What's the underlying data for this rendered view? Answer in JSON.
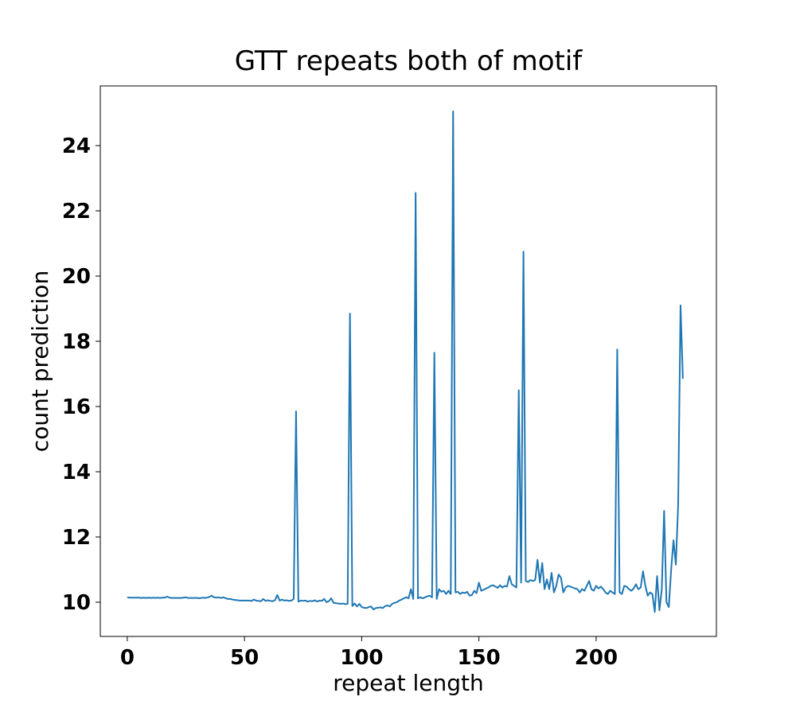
{
  "chart_data": {
    "type": "line",
    "title": "GTT repeats both of motif",
    "x_label": "repeat length",
    "y_label": "count prediction",
    "x": [
      0,
      1,
      2,
      3,
      4,
      5,
      6,
      7,
      8,
      9,
      10,
      11,
      12,
      13,
      14,
      15,
      16,
      17,
      18,
      19,
      20,
      21,
      22,
      23,
      24,
      25,
      26,
      27,
      28,
      29,
      30,
      31,
      32,
      33,
      34,
      35,
      36,
      37,
      38,
      39,
      40,
      41,
      42,
      43,
      44,
      45,
      46,
      47,
      48,
      49,
      50,
      51,
      52,
      53,
      54,
      55,
      56,
      57,
      58,
      59,
      60,
      61,
      62,
      63,
      64,
      65,
      66,
      67,
      68,
      69,
      70,
      71,
      72,
      73,
      74,
      75,
      76,
      77,
      78,
      79,
      80,
      81,
      82,
      83,
      84,
      85,
      86,
      87,
      88,
      89,
      90,
      91,
      92,
      93,
      94,
      95,
      96,
      97,
      98,
      99,
      100,
      101,
      102,
      103,
      104,
      105,
      106,
      107,
      108,
      109,
      110,
      111,
      112,
      113,
      114,
      115,
      116,
      117,
      118,
      119,
      120,
      121,
      122,
      123,
      124,
      125,
      126,
      127,
      128,
      129,
      130,
      131,
      132,
      133,
      134,
      135,
      136,
      137,
      138,
      139,
      140,
      141,
      142,
      143,
      144,
      145,
      146,
      147,
      148,
      149,
      150,
      151,
      152,
      153,
      154,
      155,
      156,
      157,
      158,
      159,
      160,
      161,
      162,
      163,
      164,
      165,
      166,
      167,
      168,
      169,
      170,
      171,
      172,
      173,
      174,
      175,
      176,
      177,
      178,
      179,
      180,
      181,
      182,
      183,
      184,
      185,
      186,
      187,
      188,
      189,
      190,
      191,
      192,
      193,
      194,
      195,
      196,
      197,
      198,
      199,
      200,
      201,
      202,
      203,
      204,
      205,
      206,
      207,
      208,
      209,
      210,
      211,
      212,
      213,
      214,
      215,
      216,
      217,
      218,
      219,
      220,
      221,
      222,
      223,
      224,
      225,
      226,
      227,
      228,
      229,
      230,
      231,
      232,
      233,
      234,
      235,
      236,
      237
    ],
    "series": [
      {
        "color": "#1f77b4",
        "values": [
          10.15,
          10.14,
          10.14,
          10.14,
          10.14,
          10.14,
          10.13,
          10.14,
          10.13,
          10.14,
          10.13,
          10.14,
          10.13,
          10.14,
          10.13,
          10.14,
          10.14,
          10.17,
          10.14,
          10.13,
          10.13,
          10.13,
          10.13,
          10.13,
          10.14,
          10.15,
          10.13,
          10.13,
          10.13,
          10.13,
          10.13,
          10.12,
          10.14,
          10.13,
          10.14,
          10.16,
          10.2,
          10.15,
          10.14,
          10.15,
          10.13,
          10.15,
          10.12,
          10.1,
          10.1,
          10.08,
          10.07,
          10.06,
          10.05,
          10.05,
          10.05,
          10.05,
          10.05,
          10.04,
          10.08,
          10.05,
          10.04,
          10.03,
          10.1,
          10.04,
          10.06,
          10.04,
          10.03,
          10.06,
          10.22,
          10.05,
          10.08,
          10.05,
          10.06,
          10.04,
          10.05,
          10.1,
          15.85,
          10.02,
          10.05,
          10.04,
          10.05,
          10.02,
          10.04,
          10.03,
          10.06,
          10.02,
          10.05,
          10.04,
          10.1,
          10.0,
          10.03,
          10.12,
          9.98,
          9.97,
          9.96,
          9.95,
          9.96,
          9.94,
          9.95,
          18.85,
          9.88,
          9.96,
          9.87,
          9.95,
          9.85,
          9.83,
          9.82,
          9.85,
          9.87,
          9.78,
          9.82,
          9.83,
          9.84,
          9.82,
          9.88,
          9.9,
          9.87,
          9.95,
          9.98,
          10.0,
          10.05,
          10.08,
          10.12,
          10.15,
          10.12,
          10.4,
          10.1,
          22.55,
          10.12,
          10.15,
          10.12,
          10.15,
          10.18,
          10.2,
          10.15,
          17.65,
          10.1,
          10.4,
          10.32,
          10.35,
          10.25,
          10.35,
          10.25,
          25.05,
          10.3,
          10.32,
          10.25,
          10.3,
          10.28,
          10.32,
          10.2,
          10.22,
          10.35,
          10.28,
          10.6,
          10.35,
          10.38,
          10.42,
          10.45,
          10.5,
          10.52,
          10.48,
          10.44,
          10.52,
          10.45,
          10.5,
          10.48,
          10.8,
          10.55,
          10.5,
          10.45,
          16.5,
          10.6,
          20.75,
          10.65,
          10.62,
          10.68,
          10.65,
          10.68,
          11.3,
          10.6,
          11.2,
          10.4,
          10.7,
          10.4,
          10.9,
          10.3,
          10.5,
          10.85,
          10.75,
          10.3,
          10.45,
          10.5,
          10.48,
          10.45,
          10.42,
          10.4,
          10.3,
          10.4,
          10.35,
          10.5,
          10.65,
          10.4,
          10.35,
          10.5,
          10.42,
          10.48,
          10.4,
          10.3,
          10.25,
          10.35,
          10.3,
          10.25,
          17.75,
          10.3,
          10.25,
          10.5,
          10.48,
          10.4,
          10.35,
          10.42,
          10.55,
          10.4,
          10.45,
          10.95,
          10.5,
          10.2,
          10.3,
          10.25,
          9.7,
          10.8,
          9.75,
          10.4,
          12.8,
          10.0,
          9.85,
          11.0,
          11.9,
          11.15,
          13.0,
          19.1,
          16.85
        ]
      }
    ],
    "xlim": [
      -11.5,
      251.3
    ],
    "ylim": [
      8.95,
      25.83
    ],
    "xticks": [
      0,
      50,
      100,
      150,
      200
    ],
    "yticks": [
      10,
      12,
      14,
      16,
      18,
      20,
      22,
      24
    ],
    "grid": false
  }
}
